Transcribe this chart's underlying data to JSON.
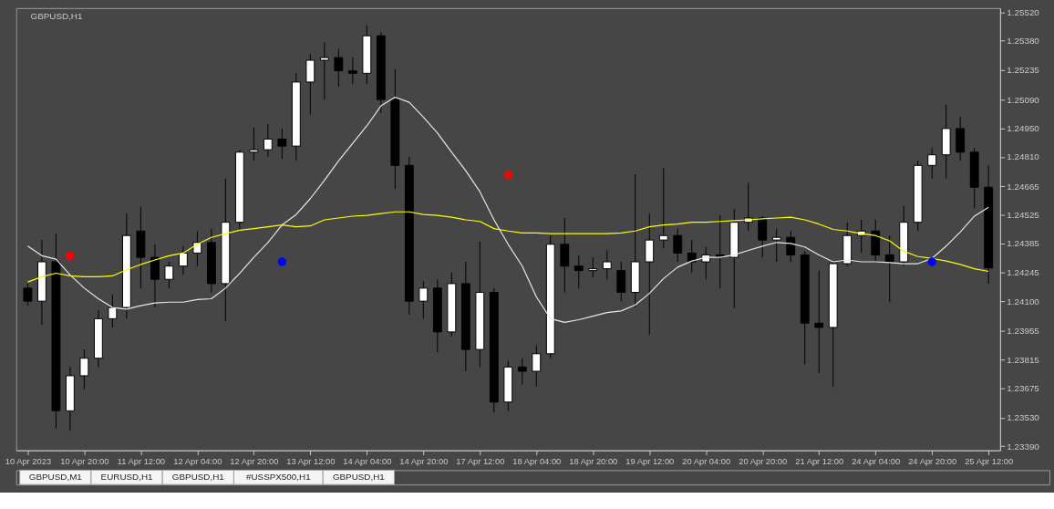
{
  "chart_data": {
    "type": "candlestick",
    "title": "GBPUSD,H1",
    "color": "#000000",
    "categories": [
      "10 Apr 2023",
      null,
      null,
      null,
      "10 Apr 20:00",
      null,
      null,
      null,
      "11 Apr 12:00",
      null,
      null,
      null,
      "12 Apr 04:00",
      null,
      null,
      null,
      "12 Apr 20:00",
      null,
      null,
      null,
      "13 Apr 12:00",
      null,
      null,
      null,
      "14 Apr 04:00",
      null,
      null,
      null,
      "14 Apr 20:00",
      null,
      null,
      null,
      "17 Apr 12:00",
      null,
      null,
      null,
      "18 Apr 04:00",
      null,
      null,
      null,
      "18 Apr 20:00",
      null,
      null,
      null,
      "19 Apr 12:00",
      null,
      null,
      null,
      "20 Apr 04:00",
      null,
      null,
      null,
      "20 Apr 20:00",
      null,
      null,
      null,
      "21 Apr 12:00",
      null,
      null,
      null,
      "24 Apr 04:00",
      null,
      null,
      null,
      "24 Apr 20:00",
      null,
      null,
      null,
      "25 Apr 12:00"
    ],
    "ohlc": [
      [
        1.24166,
        1.24188,
        1.2408,
        1.24102
      ],
      [
        1.24102,
        1.24402,
        1.23985,
        1.24295
      ],
      [
        1.24295,
        1.24433,
        1.23478,
        1.23564
      ],
      [
        1.23564,
        1.23779,
        1.23465,
        1.23736
      ],
      [
        1.23736,
        1.23865,
        1.23672,
        1.23822
      ],
      [
        1.23822,
        1.24059,
        1.23779,
        1.24016
      ],
      [
        1.24016,
        1.24136,
        1.23973,
        1.24071
      ],
      [
        1.24071,
        1.24532,
        1.24016,
        1.24424
      ],
      [
        1.24446,
        1.24566,
        1.24166,
        1.24317
      ],
      [
        1.24317,
        1.24381,
        1.24071,
        1.24209
      ],
      [
        1.24209,
        1.24295,
        1.24166,
        1.24274
      ],
      [
        1.24274,
        1.24372,
        1.24231,
        1.24338
      ],
      [
        1.24338,
        1.24446,
        1.24274,
        1.2439
      ],
      [
        1.2439,
        1.24458,
        1.24145,
        1.24188
      ],
      [
        1.24188,
        1.24704,
        1.24003,
        1.24489
      ],
      [
        1.24489,
        1.24845,
        1.24446,
        1.24833
      ],
      [
        1.24833,
        1.24953,
        1.2479,
        1.24845
      ],
      [
        1.24845,
        1.2497,
        1.24811,
        1.24897
      ],
      [
        1.24897,
        1.24949,
        1.24798,
        1.24863
      ],
      [
        1.24863,
        1.2522,
        1.2479,
        1.25177
      ],
      [
        1.25177,
        1.25314,
        1.25017,
        1.25284
      ],
      [
        1.25284,
        1.2537,
        1.25091,
        1.25297
      ],
      [
        1.25297,
        1.2534,
        1.25155,
        1.25232
      ],
      [
        1.25232,
        1.25297,
        1.25168,
        1.2522
      ],
      [
        1.2522,
        1.25456,
        1.25168,
        1.25404
      ],
      [
        1.25404,
        1.25422,
        1.25026,
        1.25091
      ],
      [
        1.25091,
        1.25241,
        1.24652,
        1.24768
      ],
      [
        1.24768,
        1.24811,
        1.24037,
        1.24102
      ],
      [
        1.24102,
        1.242,
        1.24016,
        1.24166
      ],
      [
        1.24166,
        1.24209,
        1.23852,
        1.23951
      ],
      [
        1.23951,
        1.24243,
        1.2393,
        1.24188
      ],
      [
        1.24188,
        1.24295,
        1.23758,
        1.23865
      ],
      [
        1.23865,
        1.24394,
        1.23779,
        1.24145
      ],
      [
        1.24145,
        1.24166,
        1.23555,
        1.23607
      ],
      [
        1.23607,
        1.23809,
        1.23564,
        1.23779
      ],
      [
        1.23779,
        1.23822,
        1.23693,
        1.23758
      ],
      [
        1.23758,
        1.23887,
        1.23684,
        1.23844
      ],
      [
        1.23844,
        1.24424,
        1.23822,
        1.24381
      ],
      [
        1.24381,
        1.2451,
        1.24145,
        1.24274
      ],
      [
        1.24274,
        1.24325,
        1.24166,
        1.24252
      ],
      [
        1.24252,
        1.24317,
        1.24218,
        1.24261
      ],
      [
        1.24261,
        1.24351,
        1.24209,
        1.24295
      ],
      [
        1.24252,
        1.24295,
        1.24102,
        1.24145
      ],
      [
        1.24145,
        1.24725,
        1.24071,
        1.24295
      ],
      [
        1.24295,
        1.24532,
        1.23938,
        1.24402
      ],
      [
        1.24402,
        1.24755,
        1.2436,
        1.24424
      ],
      [
        1.24424,
        1.24458,
        1.24295,
        1.24338
      ],
      [
        1.24338,
        1.24402,
        1.24243,
        1.24295
      ],
      [
        1.24295,
        1.24368,
        1.24209,
        1.24329
      ],
      [
        1.24329,
        1.24523,
        1.24166,
        1.24317
      ],
      [
        1.24317,
        1.24553,
        1.24067,
        1.24489
      ],
      [
        1.24489,
        1.24682,
        1.24446,
        1.2451
      ],
      [
        1.2451,
        1.24519,
        1.24317,
        1.24402
      ],
      [
        1.24402,
        1.24458,
        1.24295,
        1.24415
      ],
      [
        1.24415,
        1.24446,
        1.24295,
        1.24329
      ],
      [
        1.24329,
        1.24347,
        1.23792,
        1.23994
      ],
      [
        1.23994,
        1.24252,
        1.23749,
        1.23973
      ],
      [
        1.23973,
        1.24295,
        1.2368,
        1.24286
      ],
      [
        1.24286,
        1.24489,
        1.24274,
        1.24424
      ],
      [
        1.24424,
        1.24501,
        1.24338,
        1.24446
      ],
      [
        1.24446,
        1.24501,
        1.24295,
        1.24329
      ],
      [
        1.24329,
        1.24424,
        1.24097,
        1.24295
      ],
      [
        1.24295,
        1.2457,
        1.24274,
        1.24489
      ],
      [
        1.24489,
        1.2479,
        1.24446,
        1.24768
      ],
      [
        1.24768,
        1.24854,
        1.24704,
        1.2482
      ],
      [
        1.2482,
        1.25065,
        1.24704,
        1.24949
      ],
      [
        1.24949,
        1.25005,
        1.2479,
        1.24833
      ],
      [
        1.24833,
        1.24854,
        1.24557,
        1.24661
      ],
      [
        1.24661,
        1.24768,
        1.24188,
        1.24265
      ]
    ],
    "colors": [
      "#000000",
      "#ffffff",
      "#000000",
      "#ffffff",
      "#ffffff",
      "#ffffff",
      "#ffffff",
      "#ffffff",
      "#000000",
      "#000000",
      "#ffffff",
      "#ffffff",
      "#ffffff",
      "#000000",
      "#ffffff",
      "#ffffff",
      "#ffffff",
      "#ffffff",
      "#000000",
      "#ffffff",
      "#ffffff",
      "#ffffff",
      "#000000",
      "#000000",
      "#ffffff",
      "#000000",
      "#000000",
      "#000000",
      "#ffffff",
      "#000000",
      "#ffffff",
      "#000000",
      "#ffffff",
      "#000000",
      "#ffffff",
      "#000000",
      "#ffffff",
      "#ffffff",
      "#000000",
      "#000000",
      "#ffffff",
      "#ffffff",
      "#000000",
      "#ffffff",
      "#ffffff",
      "#ffffff",
      "#000000",
      "#000000",
      "#ffffff",
      "#000000",
      "#ffffff",
      "#ffffff",
      "#000000",
      "#ffffff",
      "#000000",
      "#000000",
      "#000000",
      "#ffffff",
      "#ffffff",
      "#ffffff",
      "#000000",
      "#000000",
      "#ffffff",
      "#ffffff",
      "#ffffff",
      "#ffffff",
      "#000000",
      "#000000",
      "#000000"
    ],
    "series": [
      {
        "type": "line",
        "color": "#ffff00",
        "line_style": "solid",
        "values": [
          1.24196,
          1.24222,
          1.24239,
          1.24226,
          1.24222,
          1.24222,
          1.24226,
          1.24256,
          1.24282,
          1.24304,
          1.24325,
          1.24338,
          1.24381,
          1.24415,
          1.24433,
          1.2445,
          1.24458,
          1.24467,
          1.24476,
          1.24467,
          1.24471,
          1.24501,
          1.2451,
          1.24519,
          1.24523,
          1.24532,
          1.2454,
          1.2454,
          1.24527,
          1.24523,
          1.24514,
          1.24501,
          1.24493,
          1.24458,
          1.24446,
          1.24437,
          1.24437,
          1.24433,
          1.24433,
          1.24433,
          1.24433,
          1.24433,
          1.24437,
          1.24446,
          1.24467,
          1.24476,
          1.2448,
          1.24489,
          1.24489,
          1.24493,
          1.24497,
          1.24501,
          1.24506,
          1.2451,
          1.24514,
          1.24501,
          1.2448,
          1.24454,
          1.24446,
          1.24433,
          1.24424,
          1.24398,
          1.24347,
          1.24321,
          1.24312,
          1.24299,
          1.24282,
          1.24261,
          1.24248
        ]
      },
      {
        "type": "line",
        "color": "#e8e8e8",
        "line_style": "solid",
        "values": [
          1.24372,
          1.24325,
          1.24308,
          1.24231,
          1.24166,
          1.24114,
          1.24071,
          1.24063,
          1.2408,
          1.24093,
          1.24097,
          1.24097,
          1.2411,
          1.24114,
          1.24166,
          1.24239,
          1.24317,
          1.2439,
          1.24476,
          1.24527,
          1.24605,
          1.24695,
          1.2479,
          1.24876,
          1.24962,
          1.2506,
          1.25103,
          1.25078,
          1.25005,
          1.24927,
          1.24833,
          1.24742,
          1.24639,
          1.24501,
          1.24381,
          1.24274,
          1.24123,
          1.24016,
          1.23998,
          1.24011,
          1.24028,
          1.24046,
          1.24054,
          1.24084,
          1.2414,
          1.24213,
          1.24269,
          1.24299,
          1.24317,
          1.24317,
          1.24329,
          1.24351,
          1.24372,
          1.2439,
          1.24385,
          1.24368,
          1.24329,
          1.24295,
          1.24304,
          1.24295,
          1.24295,
          1.24291,
          1.24286,
          1.24286,
          1.24312,
          1.24372,
          1.24441,
          1.24519,
          1.24562
        ]
      },
      {
        "type": "scatter",
        "color": "#ff0000",
        "marker": "circle",
        "values": [
          null,
          null,
          null,
          1.24325,
          null,
          null,
          null,
          null,
          null,
          null,
          null,
          null,
          null,
          null,
          null,
          null,
          null,
          null,
          null,
          null,
          null,
          null,
          null,
          null,
          null,
          null,
          null,
          null,
          null,
          null,
          null,
          null,
          null,
          null,
          1.24721,
          null,
          null,
          null,
          null,
          null,
          null,
          null,
          null,
          null,
          null,
          null,
          null,
          null,
          null,
          null,
          null,
          null,
          null,
          null,
          null,
          null,
          null,
          null,
          null,
          null,
          null,
          null,
          null,
          null,
          null,
          null,
          null,
          null,
          null
        ]
      },
      {
        "type": "scatter",
        "color": "#0000ff",
        "marker": "circle",
        "values": [
          null,
          null,
          null,
          null,
          null,
          null,
          null,
          null,
          null,
          null,
          null,
          null,
          null,
          null,
          null,
          null,
          null,
          null,
          1.24295,
          null,
          null,
          null,
          null,
          null,
          null,
          null,
          null,
          null,
          null,
          null,
          null,
          null,
          null,
          null,
          null,
          null,
          null,
          null,
          null,
          null,
          null,
          null,
          null,
          null,
          null,
          null,
          null,
          null,
          null,
          null,
          null,
          null,
          null,
          null,
          null,
          null,
          null,
          null,
          null,
          null,
          null,
          null,
          null,
          null,
          1.24295,
          null,
          null,
          null,
          null
        ]
      }
    ],
    "ylim": [
      1.2337,
      1.2554
    ],
    "yticks": [
      {
        "value": 1.2552,
        "label": "1.25520"
      },
      {
        "value": 1.2538,
        "label": "1.25380"
      },
      {
        "value": 1.25235,
        "label": "1.25235"
      },
      {
        "value": 1.2509,
        "label": "1.25090"
      },
      {
        "value": 1.2495,
        "label": "1.24950"
      },
      {
        "value": 1.2481,
        "label": "1.24810"
      },
      {
        "value": 1.24665,
        "label": "1.24665"
      },
      {
        "value": 1.24525,
        "label": "1.24525"
      },
      {
        "value": 1.24385,
        "label": "1.24385"
      },
      {
        "value": 1.24245,
        "label": "1.24245"
      },
      {
        "value": 1.241,
        "label": "1.24100"
      },
      {
        "value": 1.23955,
        "label": "1.23955"
      },
      {
        "value": 1.23815,
        "label": "1.23815"
      },
      {
        "value": 1.23675,
        "label": "1.23675"
      },
      {
        "value": 1.2353,
        "label": "1.23530"
      },
      {
        "value": 1.2339,
        "label": "1.23390"
      }
    ],
    "grid": false,
    "annotations": [
      "GBPUSD,M1",
      "EURUSD,H1",
      "GBPUSD,H1",
      "#USSPX500,H1",
      "GBPUSD,H1"
    ]
  }
}
